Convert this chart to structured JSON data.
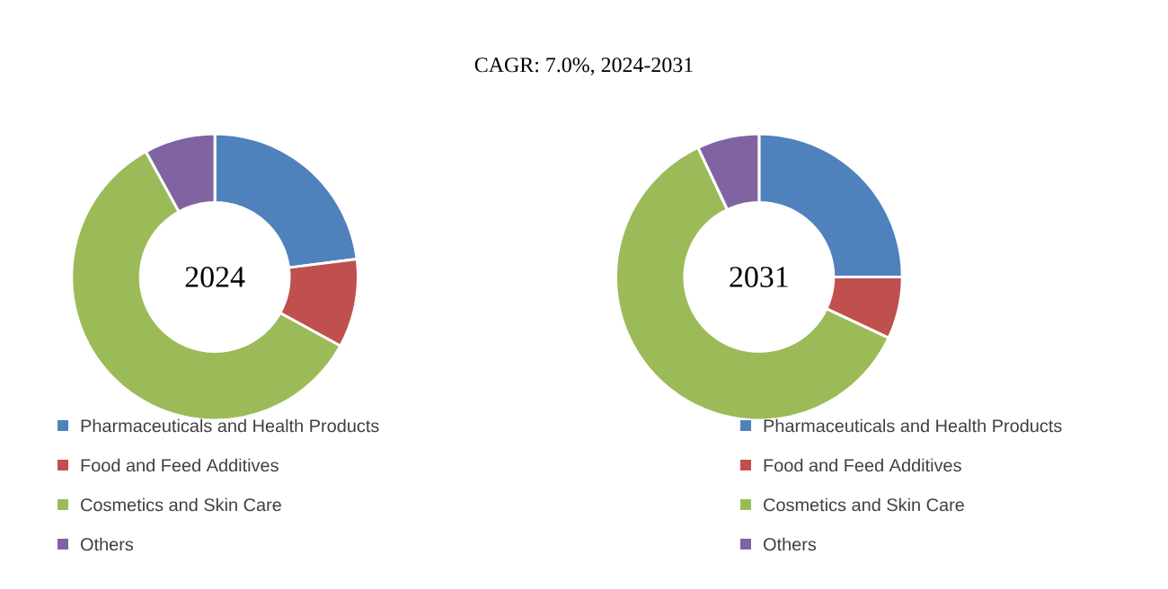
{
  "chart_data": [
    {
      "type": "donut",
      "title": "CAGR:  7.0%, 2024-2031",
      "annotations": [
        "2024"
      ],
      "categories": [
        "Pharmaceuticals and Health Products",
        "Food and Feed Additives",
        "Cosmetics and Skin Care",
        "Others"
      ],
      "values": [
        23,
        10,
        59,
        8
      ],
      "colors": [
        "#4f81bd",
        "#c0504d",
        "#9bbb59",
        "#8064a2"
      ],
      "legend": "bottom"
    },
    {
      "type": "donut",
      "annotations": [
        "2031"
      ],
      "categories": [
        "Pharmaceuticals and Health Products",
        "Food and Feed Additives",
        "Cosmetics and Skin Care",
        "Others"
      ],
      "values": [
        25,
        7,
        61,
        7
      ],
      "colors": [
        "#4f81bd",
        "#c0504d",
        "#9bbb59",
        "#8064a2"
      ],
      "legend": "bottom"
    }
  ]
}
